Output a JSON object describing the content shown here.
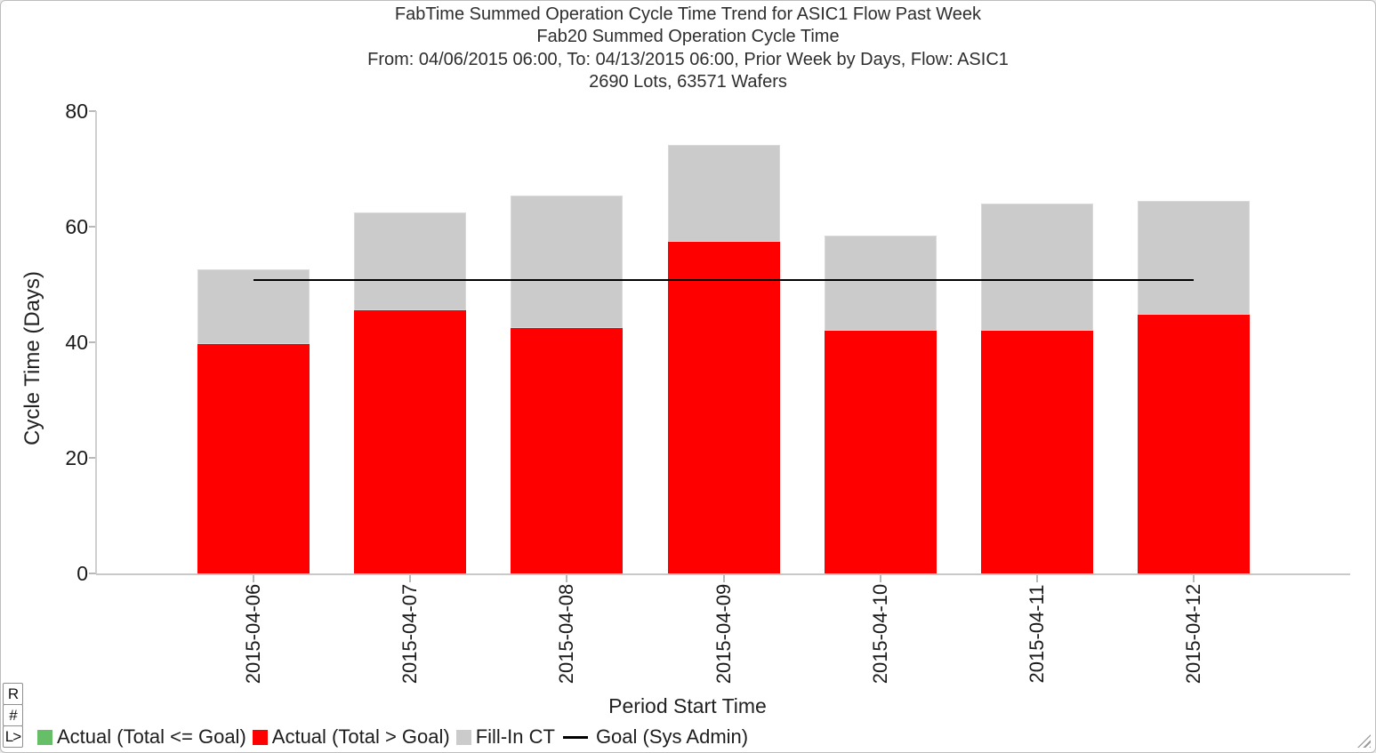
{
  "chart_data": {
    "type": "bar",
    "stacked": true,
    "title_lines": [
      "FabTime Summed Operation Cycle Time Trend for ASIC1 Flow Past Week",
      "Fab20 Summed Operation Cycle Time",
      "From: 04/06/2015 06:00, To: 04/13/2015 06:00, Prior Week by Days, Flow: ASIC1",
      "2690 Lots, 63571 Wafers"
    ],
    "categories": [
      "2015-04-06",
      "2015-04-07",
      "2015-04-08",
      "2015-04-09",
      "2015-04-10",
      "2015-04-11",
      "2015-04-12"
    ],
    "series": [
      {
        "name": "Actual (Total <= Goal)",
        "color": "#66BE66",
        "values": [
          0,
          0,
          0,
          0,
          0,
          0,
          0
        ]
      },
      {
        "name": "Actual (Total > Goal)",
        "color": "#FF0000",
        "values": [
          39.7,
          45.5,
          42.5,
          57.4,
          42.0,
          42.0,
          44.8
        ]
      },
      {
        "name": "Fill-In CT",
        "color": "#CBCBCB",
        "values": [
          12.9,
          16.9,
          22.9,
          16.8,
          16.5,
          22.0,
          19.7
        ]
      }
    ],
    "totals": [
      52.6,
      62.4,
      65.4,
      74.2,
      58.5,
      64.0,
      64.5
    ],
    "goal_line": {
      "name": "Goal (Sys Admin)",
      "value": 50.7,
      "color": "#000000"
    },
    "xlabel": "Period Start Time",
    "ylabel": "Cycle Time (Days)",
    "ylim": [
      0,
      80
    ],
    "yticks": [
      0,
      20,
      40,
      60,
      80
    ],
    "grid": false,
    "legend_position": "bottom-left",
    "legend": [
      {
        "label": "Actual (Total <= Goal)",
        "marker": "square",
        "color": "#66BE66"
      },
      {
        "label": "Actual (Total > Goal)",
        "marker": "square",
        "color": "#FF0000"
      },
      {
        "label": "Fill-In CT",
        "marker": "square",
        "color": "#CBCBCB"
      },
      {
        "label": "Goal (Sys Admin)",
        "marker": "line",
        "color": "#000000"
      }
    ]
  },
  "toolbar": {
    "buttons": [
      {
        "label": "R",
        "name": "r"
      },
      {
        "label": "#",
        "name": "hash"
      },
      {
        "label": "L>",
        "name": "l-arrow"
      }
    ]
  },
  "icons": {
    "resize_handle": "diagonal-grip-triangle"
  }
}
